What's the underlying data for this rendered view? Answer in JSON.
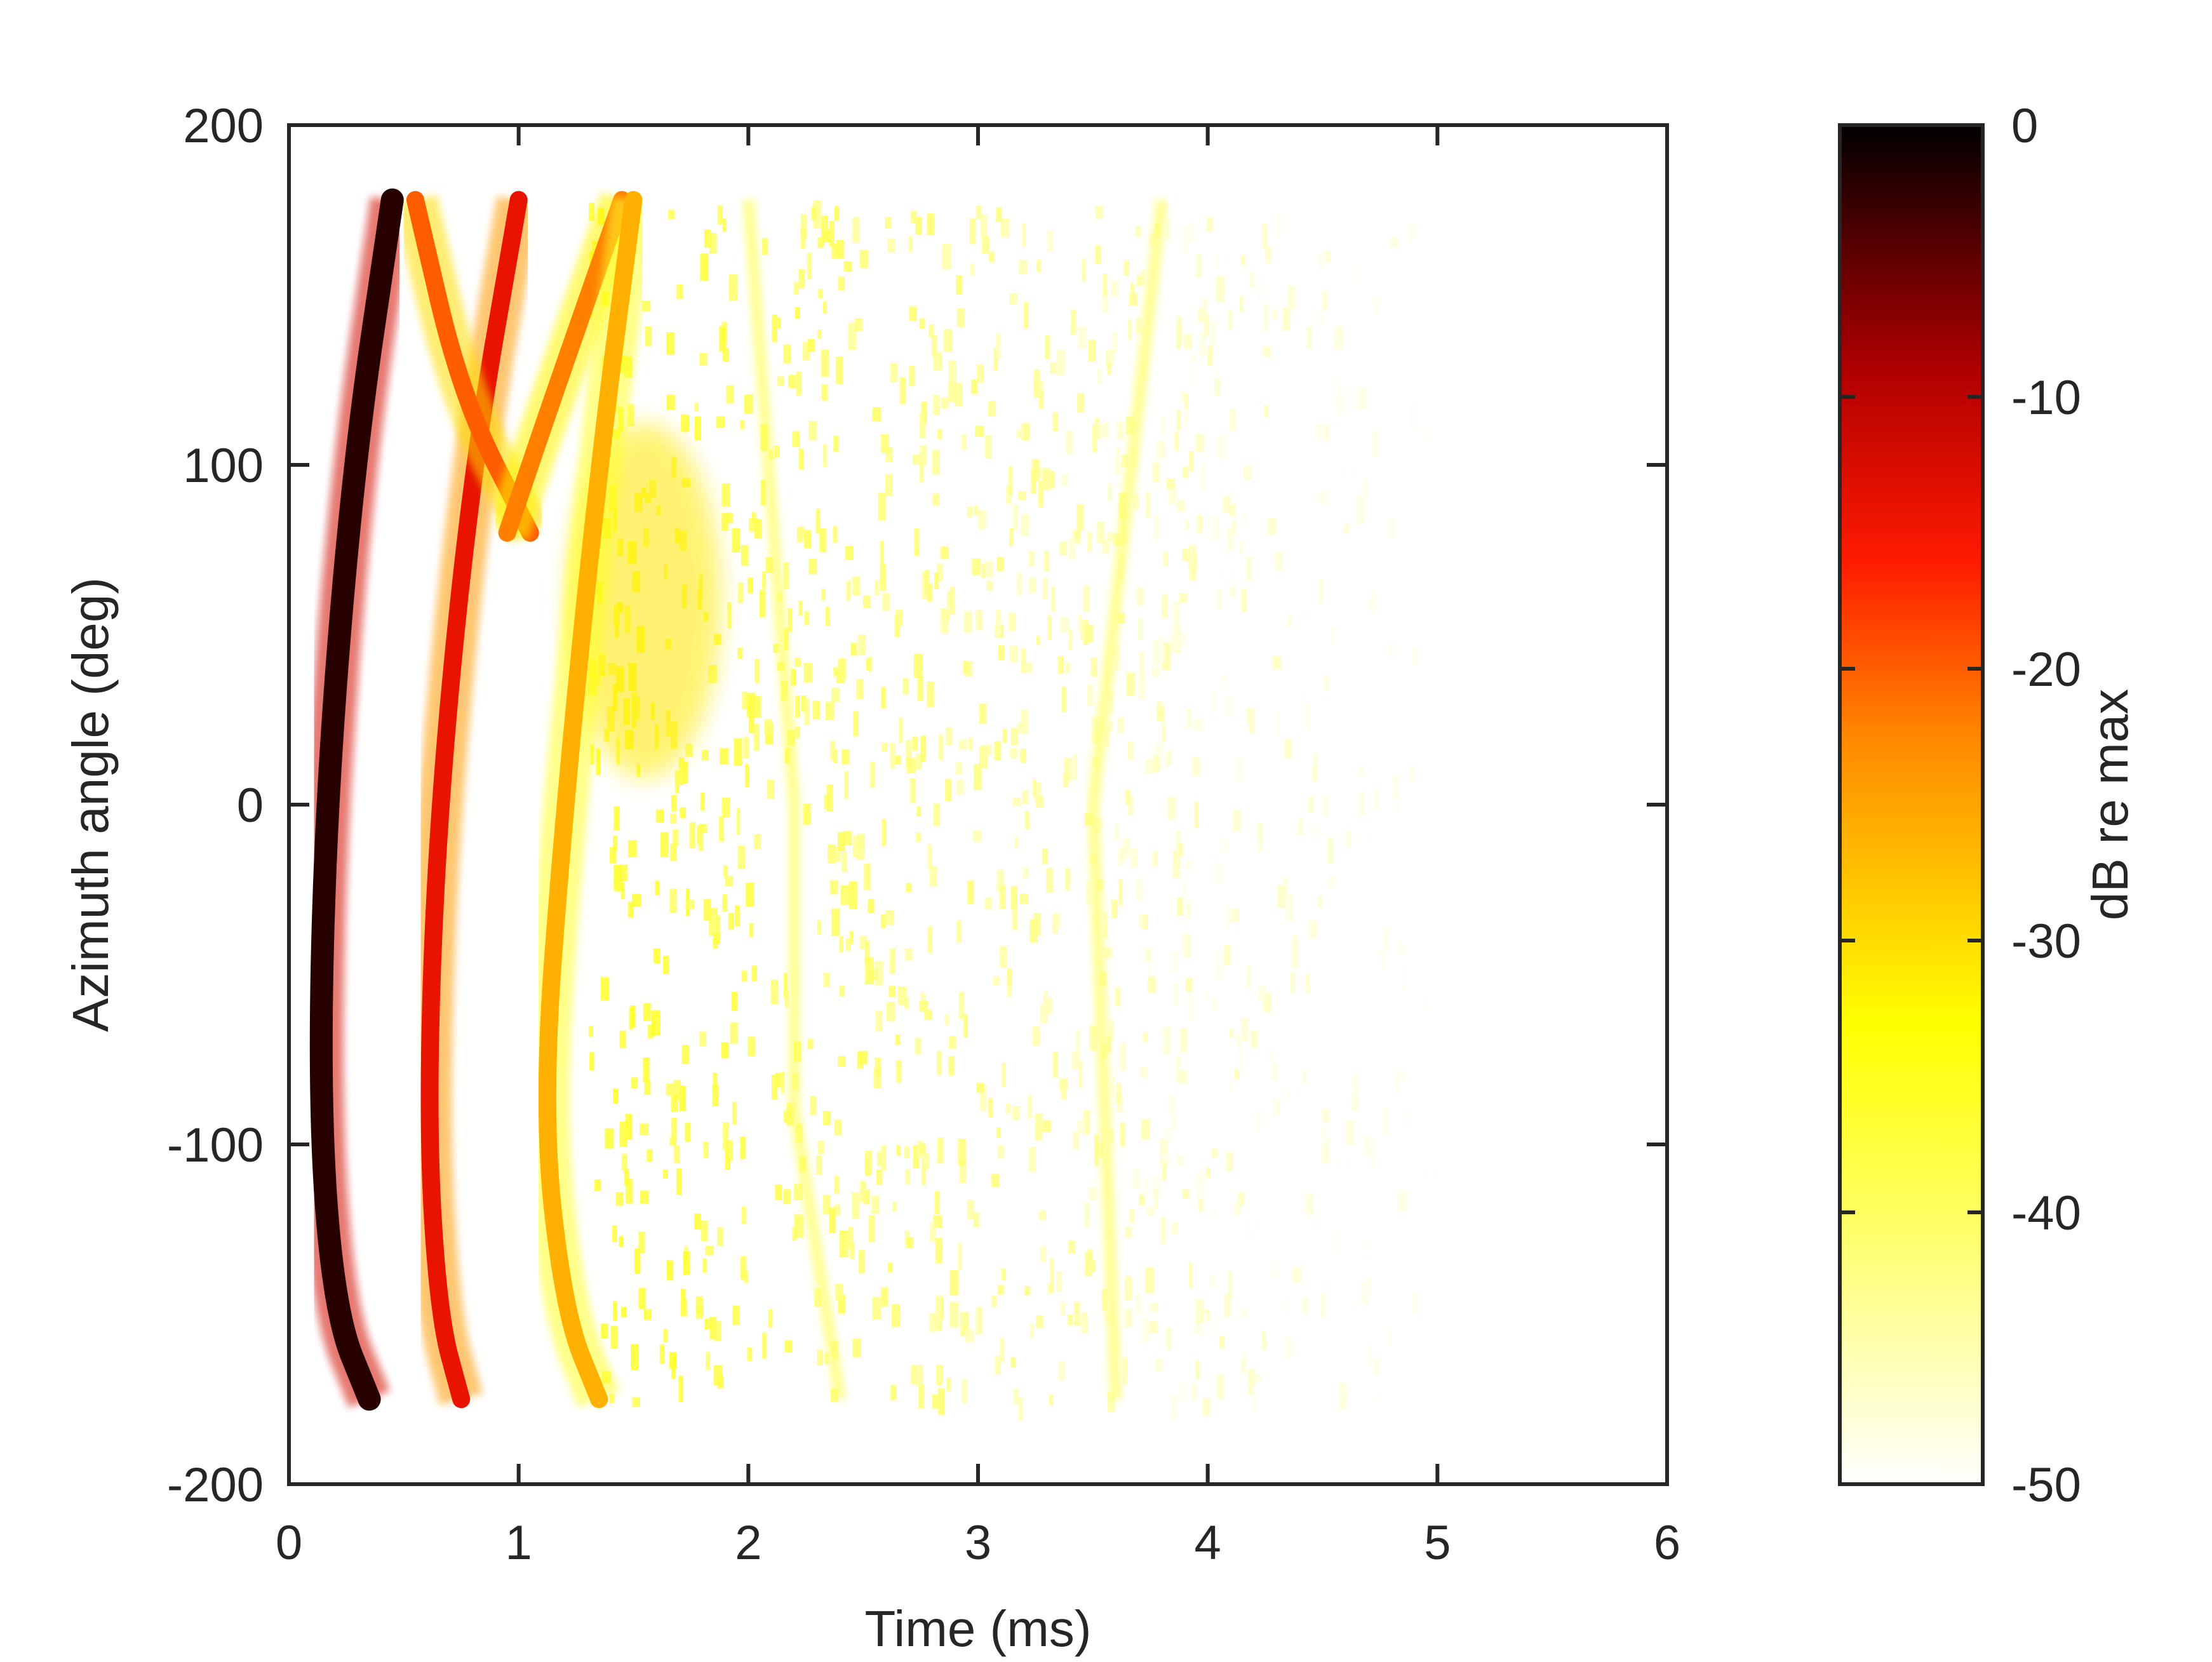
{
  "chart_data": {
    "type": "heatmap",
    "title": "",
    "xlabel": "Time (ms)",
    "ylabel": "Azimuth angle (deg)",
    "xlim": [
      0,
      6
    ],
    "ylim": [
      -200,
      200
    ],
    "xticks": [
      0,
      1,
      2,
      3,
      4,
      5,
      6
    ],
    "yticks": [
      -200,
      -100,
      0,
      100,
      200
    ],
    "grid": false,
    "colorbar": {
      "label": "dB re max",
      "range": [
        -50,
        0
      ],
      "ticks": [
        0,
        -10,
        -20,
        -30,
        -40,
        -50
      ],
      "colormap": "hot",
      "colors": [
        "#ffffff",
        "#ffff00",
        "#ff8c00",
        "#ff0000",
        "#b00000",
        "#000000"
      ]
    },
    "data_extent": {
      "x": [
        0.1,
        5.0
      ],
      "y": [
        -175,
        178
      ]
    },
    "features": [
      {
        "name": "direct arrival",
        "level_db": -2,
        "points": [
          [
            0.45,
            178
          ],
          [
            0.28,
            100
          ],
          [
            0.16,
            0
          ],
          [
            0.13,
            -90
          ],
          [
            0.2,
            -150
          ],
          [
            0.35,
            -175
          ]
        ]
      },
      {
        "name": "first reflection",
        "level_db": -14,
        "points": [
          [
            1.0,
            178
          ],
          [
            0.8,
            100
          ],
          [
            0.65,
            0
          ],
          [
            0.6,
            -90
          ],
          [
            0.65,
            -150
          ],
          [
            0.75,
            -175
          ]
        ]
      },
      {
        "name": "crossing arrival (descending)",
        "level_db": -20,
        "points": [
          [
            0.55,
            178
          ],
          [
            0.75,
            120
          ],
          [
            1.05,
            80
          ]
        ]
      },
      {
        "name": "crossing arrival (ascending)",
        "level_db": -22,
        "points": [
          [
            0.95,
            80
          ],
          [
            1.15,
            120
          ],
          [
            1.45,
            178
          ]
        ]
      },
      {
        "name": "reflection band 3",
        "level_db": -26,
        "points": [
          [
            1.5,
            178
          ],
          [
            1.35,
            100
          ],
          [
            1.2,
            0
          ],
          [
            1.1,
            -90
          ],
          [
            1.2,
            -150
          ],
          [
            1.35,
            -175
          ]
        ]
      },
      {
        "name": "reverberant tail",
        "level_db": -40,
        "points": [
          [
            2.0,
            178
          ],
          [
            2.2,
            0
          ],
          [
            2.2,
            -90
          ],
          [
            2.4,
            -175
          ],
          [
            3.8,
            178
          ],
          [
            3.5,
            0
          ],
          [
            3.6,
            -175
          ]
        ]
      }
    ]
  }
}
